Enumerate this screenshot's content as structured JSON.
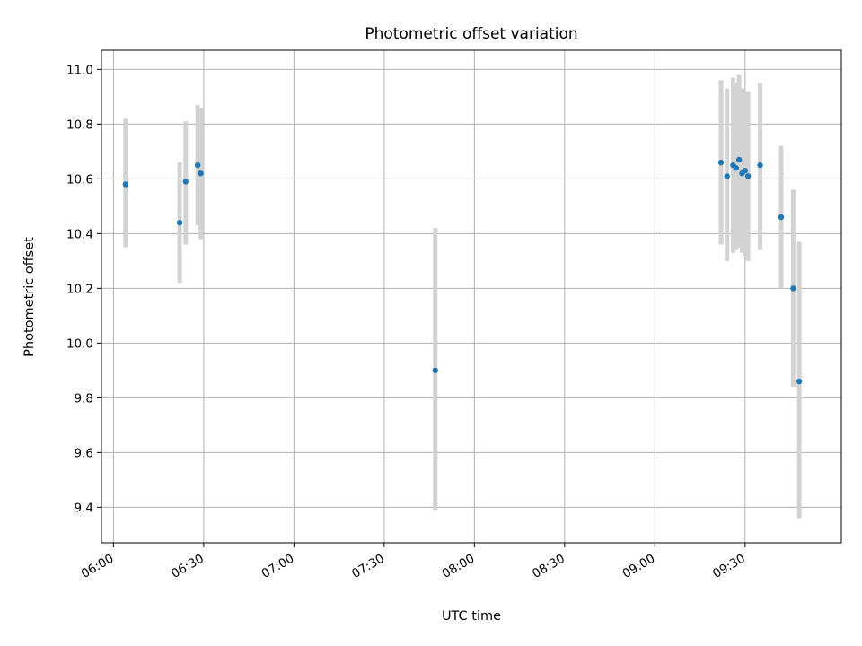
{
  "chart_data": {
    "type": "scatter",
    "title": "Photometric offset variation",
    "xlabel": "UTC time",
    "ylabel": "Photometric offset",
    "x_is_time": true,
    "xlim": [
      "05:56",
      "10:02"
    ],
    "ylim": [
      9.27,
      11.07
    ],
    "x_ticks": [
      "06:00",
      "06:30",
      "07:00",
      "07:30",
      "08:00",
      "08:30",
      "09:00",
      "09:30"
    ],
    "y_ticks": [
      "9.4",
      "9.6",
      "9.8",
      "10.0",
      "10.2",
      "10.4",
      "10.6",
      "10.8",
      "11.0"
    ],
    "grid": true,
    "colors": {
      "point": "#1f77b4",
      "errorbar": "#d3d3d3",
      "grid": "#b0b0b0"
    },
    "series": [
      {
        "points": [
          {
            "x": "06:04",
            "y": 10.58,
            "ylow": 10.35,
            "yhigh": 10.82
          },
          {
            "x": "06:22",
            "y": 10.44,
            "ylow": 10.22,
            "yhigh": 10.66
          },
          {
            "x": "06:24",
            "y": 10.59,
            "ylow": 10.36,
            "yhigh": 10.81
          },
          {
            "x": "06:28",
            "y": 10.65,
            "ylow": 10.43,
            "yhigh": 10.87
          },
          {
            "x": "06:29",
            "y": 10.62,
            "ylow": 10.38,
            "yhigh": 10.86
          },
          {
            "x": "07:47",
            "y": 9.9,
            "ylow": 9.39,
            "yhigh": 10.42
          },
          {
            "x": "09:22",
            "y": 10.66,
            "ylow": 10.36,
            "yhigh": 10.96
          },
          {
            "x": "09:24",
            "y": 10.61,
            "ylow": 10.3,
            "yhigh": 10.93
          },
          {
            "x": "09:26",
            "y": 10.65,
            "ylow": 10.33,
            "yhigh": 10.97
          },
          {
            "x": "09:27",
            "y": 10.64,
            "ylow": 10.34,
            "yhigh": 10.95
          },
          {
            "x": "09:28",
            "y": 10.67,
            "ylow": 10.35,
            "yhigh": 10.98
          },
          {
            "x": "09:29",
            "y": 10.62,
            "ylow": 10.33,
            "yhigh": 10.93
          },
          {
            "x": "09:30",
            "y": 10.63,
            "ylow": 10.32,
            "yhigh": 10.92
          },
          {
            "x": "09:31",
            "y": 10.61,
            "ylow": 10.3,
            "yhigh": 10.92
          },
          {
            "x": "09:35",
            "y": 10.65,
            "ylow": 10.34,
            "yhigh": 10.95
          },
          {
            "x": "09:42",
            "y": 10.46,
            "ylow": 10.2,
            "yhigh": 10.72
          },
          {
            "x": "09:46",
            "y": 10.2,
            "ylow": 9.84,
            "yhigh": 10.56
          },
          {
            "x": "09:48",
            "y": 9.86,
            "ylow": 9.36,
            "yhigh": 10.37
          }
        ]
      }
    ]
  }
}
